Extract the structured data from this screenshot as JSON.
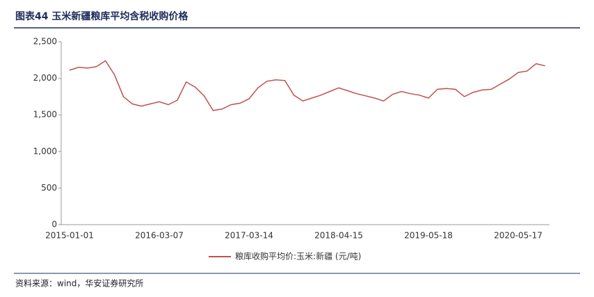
{
  "chart_data": {
    "type": "line",
    "title": "图表44 玉米新疆粮库平均含税收购价格",
    "source": "资料来源：wind，华安证券研究所",
    "categories": [
      "2015-01-01",
      null,
      null,
      null,
      null,
      null,
      null,
      null,
      null,
      null,
      "2016-03-07",
      null,
      null,
      null,
      null,
      null,
      null,
      null,
      null,
      null,
      "2017-03-14",
      null,
      null,
      null,
      null,
      null,
      null,
      null,
      null,
      null,
      "2018-04-15",
      null,
      null,
      null,
      null,
      null,
      null,
      null,
      null,
      null,
      "2019-05-18",
      null,
      null,
      null,
      null,
      null,
      null,
      null,
      null,
      null,
      "2020-05-17",
      null,
      null,
      null
    ],
    "series": [
      {
        "name": "粮库收购平均价:玉米:新疆 (元/吨)",
        "color": "#c0504d",
        "values": [
          2110,
          2150,
          2140,
          2160,
          2240,
          2050,
          1750,
          1650,
          1620,
          1650,
          1680,
          1640,
          1700,
          1950,
          1880,
          1760,
          1560,
          1580,
          1640,
          1660,
          1720,
          1870,
          1960,
          1980,
          1970,
          1770,
          1690,
          1730,
          1770,
          1820,
          1870,
          1830,
          1790,
          1760,
          1730,
          1690,
          1780,
          1820,
          1790,
          1770,
          1730,
          1850,
          1860,
          1850,
          1750,
          1810,
          1840,
          1850,
          1920,
          1990,
          2080,
          2100,
          2200,
          2170
        ]
      }
    ],
    "ylim": [
      0,
      2500
    ],
    "yticks": [
      0,
      500,
      {
        "value": 1000,
        "label": "1,000"
      },
      {
        "value": 1500,
        "label": "1,500"
      },
      {
        "value": 2000,
        "label": "2,000"
      },
      {
        "value": 2500,
        "label": "2,500"
      }
    ],
    "grid": false
  }
}
